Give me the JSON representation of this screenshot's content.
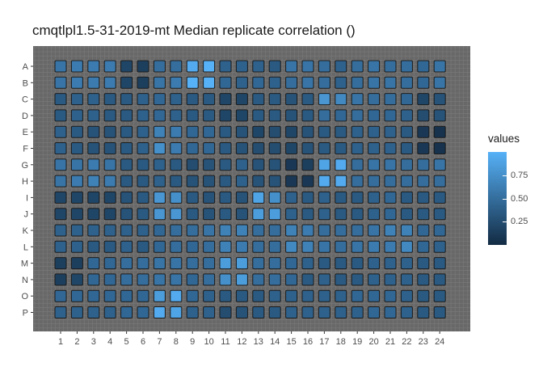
{
  "chart_data": {
    "type": "heatmap",
    "title": "cmqtlpl1.5-31-2019-mt Median replicate correlation ()",
    "rows": [
      "A",
      "B",
      "C",
      "D",
      "E",
      "F",
      "G",
      "H",
      "I",
      "J",
      "K",
      "L",
      "M",
      "N",
      "O",
      "P"
    ],
    "columns": [
      "1",
      "2",
      "3",
      "4",
      "5",
      "6",
      "7",
      "8",
      "9",
      "10",
      "11",
      "12",
      "13",
      "14",
      "15",
      "16",
      "17",
      "18",
      "19",
      "20",
      "21",
      "22",
      "23",
      "24"
    ],
    "values": [
      [
        0.55,
        0.6,
        0.6,
        0.6,
        0.2,
        0.15,
        0.5,
        0.5,
        0.95,
        1.0,
        0.4,
        0.4,
        0.4,
        0.35,
        0.55,
        0.55,
        0.5,
        0.4,
        0.5,
        0.55,
        0.5,
        0.5,
        0.45,
        0.55
      ],
      [
        0.55,
        0.6,
        0.6,
        0.6,
        0.2,
        0.15,
        0.55,
        0.6,
        1.0,
        1.0,
        0.45,
        0.4,
        0.45,
        0.4,
        0.5,
        0.55,
        0.5,
        0.4,
        0.5,
        0.55,
        0.55,
        0.5,
        0.45,
        0.55
      ],
      [
        0.35,
        0.4,
        0.4,
        0.35,
        0.35,
        0.4,
        0.45,
        0.4,
        0.35,
        0.35,
        0.2,
        0.2,
        0.35,
        0.35,
        0.3,
        0.35,
        0.8,
        0.7,
        0.55,
        0.5,
        0.5,
        0.45,
        0.2,
        0.3
      ],
      [
        0.35,
        0.4,
        0.4,
        0.35,
        0.35,
        0.4,
        0.45,
        0.4,
        0.35,
        0.35,
        0.2,
        0.2,
        0.35,
        0.35,
        0.3,
        0.35,
        0.5,
        0.45,
        0.5,
        0.45,
        0.45,
        0.4,
        0.25,
        0.3
      ],
      [
        0.4,
        0.35,
        0.3,
        0.3,
        0.35,
        0.4,
        0.65,
        0.6,
        0.45,
        0.45,
        0.35,
        0.3,
        0.2,
        0.25,
        0.2,
        0.3,
        0.35,
        0.35,
        0.4,
        0.4,
        0.4,
        0.35,
        0.1,
        0.05
      ],
      [
        0.4,
        0.35,
        0.3,
        0.3,
        0.35,
        0.4,
        0.75,
        0.6,
        0.45,
        0.45,
        0.35,
        0.3,
        0.25,
        0.25,
        0.2,
        0.3,
        0.35,
        0.35,
        0.4,
        0.4,
        0.4,
        0.35,
        0.1,
        0.05
      ],
      [
        0.55,
        0.55,
        0.6,
        0.55,
        0.35,
        0.35,
        0.4,
        0.35,
        0.25,
        0.3,
        0.35,
        0.4,
        0.3,
        0.3,
        0.1,
        0.15,
        0.9,
        0.95,
        0.5,
        0.55,
        0.55,
        0.5,
        0.5,
        0.55
      ],
      [
        0.55,
        0.6,
        0.65,
        0.6,
        0.35,
        0.35,
        0.4,
        0.35,
        0.3,
        0.3,
        0.35,
        0.4,
        0.3,
        0.3,
        0.1,
        0.1,
        0.95,
        0.95,
        0.5,
        0.5,
        0.5,
        0.5,
        0.5,
        0.5
      ],
      [
        0.2,
        0.2,
        0.2,
        0.2,
        0.3,
        0.35,
        0.8,
        0.75,
        0.35,
        0.3,
        0.35,
        0.3,
        0.9,
        0.75,
        0.4,
        0.35,
        0.4,
        0.35,
        0.35,
        0.4,
        0.45,
        0.35,
        0.35,
        0.35
      ],
      [
        0.2,
        0.2,
        0.2,
        0.2,
        0.3,
        0.35,
        0.8,
        0.8,
        0.35,
        0.3,
        0.35,
        0.3,
        0.85,
        0.85,
        0.4,
        0.35,
        0.4,
        0.35,
        0.35,
        0.4,
        0.45,
        0.35,
        0.35,
        0.35
      ],
      [
        0.4,
        0.4,
        0.4,
        0.4,
        0.4,
        0.4,
        0.45,
        0.5,
        0.5,
        0.55,
        0.65,
        0.65,
        0.5,
        0.5,
        0.65,
        0.6,
        0.5,
        0.5,
        0.5,
        0.55,
        0.65,
        0.65,
        0.45,
        0.45
      ],
      [
        0.4,
        0.4,
        0.35,
        0.35,
        0.4,
        0.35,
        0.45,
        0.5,
        0.45,
        0.5,
        0.65,
        0.6,
        0.5,
        0.5,
        0.7,
        0.65,
        0.55,
        0.5,
        0.55,
        0.6,
        0.6,
        0.7,
        0.45,
        0.4
      ],
      [
        0.15,
        0.15,
        0.45,
        0.45,
        0.5,
        0.5,
        0.55,
        0.55,
        0.5,
        0.5,
        0.85,
        0.85,
        0.5,
        0.5,
        0.45,
        0.4,
        0.35,
        0.35,
        0.35,
        0.4,
        0.4,
        0.4,
        0.35,
        0.35
      ],
      [
        0.15,
        0.2,
        0.45,
        0.45,
        0.5,
        0.5,
        0.55,
        0.55,
        0.45,
        0.5,
        0.75,
        0.85,
        0.5,
        0.5,
        0.45,
        0.35,
        0.4,
        0.35,
        0.35,
        0.4,
        0.4,
        0.4,
        0.35,
        0.35
      ],
      [
        0.45,
        0.45,
        0.45,
        0.45,
        0.45,
        0.45,
        0.85,
        0.95,
        0.45,
        0.4,
        0.35,
        0.35,
        0.35,
        0.4,
        0.4,
        0.4,
        0.4,
        0.4,
        0.45,
        0.45,
        0.45,
        0.4,
        0.35,
        0.35
      ],
      [
        0.4,
        0.4,
        0.4,
        0.4,
        0.45,
        0.45,
        0.95,
        0.9,
        0.4,
        0.4,
        0.25,
        0.3,
        0.35,
        0.35,
        0.4,
        0.4,
        0.4,
        0.4,
        0.4,
        0.45,
        0.45,
        0.4,
        0.35,
        0.35
      ]
    ],
    "fill_scale": {
      "name": "values",
      "low_color": "#132b43",
      "high_color": "#56b1f7",
      "min": 0.0,
      "max": 1.0
    },
    "legend": {
      "title": "values",
      "ticks": [
        {
          "label": "0.75",
          "value": 0.75
        },
        {
          "label": "0.50",
          "value": 0.5
        },
        {
          "label": "0.25",
          "value": 0.25
        }
      ],
      "position": "right"
    },
    "panel_background": "#686868",
    "grid": true
  }
}
